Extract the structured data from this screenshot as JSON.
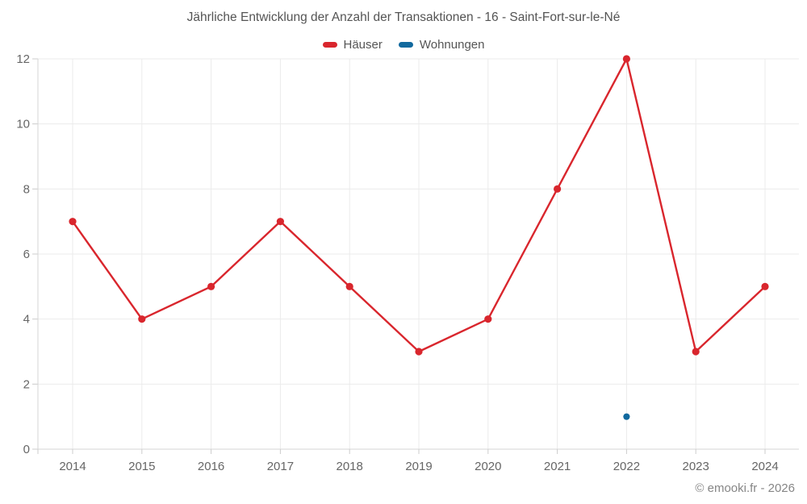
{
  "header": {
    "title": "Jährliche Entwicklung der Anzahl der Transaktionen - 16 - Saint-Fort-sur-le-Né"
  },
  "legend": {
    "items": [
      {
        "label": "Häuser",
        "color": "#d9262d"
      },
      {
        "label": "Wohnungen",
        "color": "#11699e"
      }
    ]
  },
  "footer": {
    "credit": "© emooki.fr - 2026"
  },
  "colors": {
    "haeuser": "#d9262d",
    "wohnungen": "#11699e",
    "gridline": "#ebebeb",
    "axis_line": "#d6d6d6",
    "tick_mark": "#cccccc",
    "tick_label": "#666666"
  },
  "chart_data": {
    "type": "line",
    "title": "Jährliche Entwicklung der Anzahl der Transaktionen - 16 - Saint-Fort-sur-le-Né",
    "categories": [
      "2014",
      "2015",
      "2016",
      "2017",
      "2018",
      "2019",
      "2020",
      "2021",
      "2022",
      "2023",
      "2024"
    ],
    "series": [
      {
        "name": "Häuser",
        "color": "#d9262d",
        "values": [
          7,
          4,
          5,
          7,
          5,
          3,
          4,
          8,
          12,
          3,
          5
        ]
      },
      {
        "name": "Wohnungen",
        "color": "#11699e",
        "values": [
          null,
          null,
          null,
          null,
          null,
          null,
          null,
          null,
          1,
          null,
          null
        ]
      }
    ],
    "xlabel": "",
    "ylabel": "",
    "ylim": [
      0,
      12
    ],
    "yticks": [
      0,
      2,
      4,
      6,
      8,
      10,
      12
    ],
    "grid": true,
    "legend_position": "top"
  }
}
